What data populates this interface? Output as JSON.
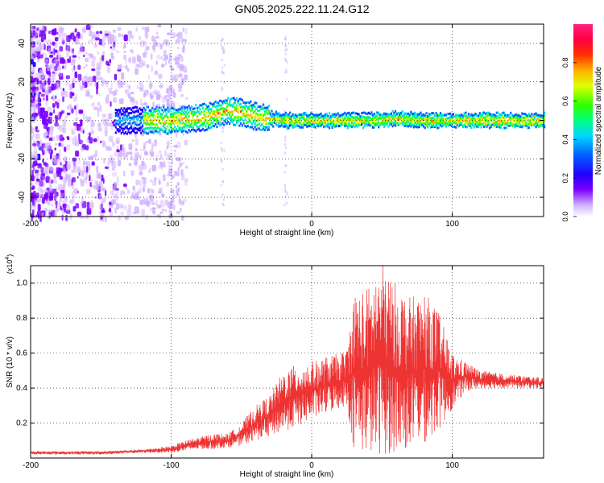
{
  "title": "GN05.2025.222.11.24.G12",
  "chart_data": [
    {
      "type": "heatmap",
      "xlabel": "Height of straight line (km)",
      "ylabel": "Frequency (Hz)",
      "xlim": [
        -200,
        165
      ],
      "ylim": [
        -50,
        50
      ],
      "xticks": [
        -200,
        -100,
        0,
        100
      ],
      "xtick_labels": [
        "-200",
        "-100",
        "0",
        "100"
      ],
      "yticks": [
        -40,
        -20,
        0,
        20,
        40
      ],
      "ytick_labels": [
        "-40",
        "-20",
        "0",
        "20",
        "40"
      ],
      "colorbar": {
        "label": "Normalized spectral amplitude",
        "range": [
          0,
          1
        ],
        "ticks": [
          0.0,
          0.2,
          0.4,
          0.6,
          0.8
        ],
        "tick_labels": [
          "0.0",
          "0.2",
          "0.4",
          "0.6",
          "0.8"
        ]
      },
      "ridge": {
        "x": [
          -140,
          -120,
          -100,
          -80,
          -70,
          -60,
          -50,
          -40,
          -30,
          -20,
          0,
          20,
          40,
          60,
          80,
          100,
          120,
          140,
          165
        ],
        "y": [
          0,
          0,
          0,
          1,
          3,
          5,
          4,
          2,
          1,
          0,
          0,
          0,
          0,
          1,
          0,
          0,
          0,
          0,
          0
        ]
      },
      "grid": true
    },
    {
      "type": "line",
      "xlabel": "Height of straight line (km)",
      "ylabel": "SNR (10 * v/v)",
      "y_scale_label": "(x10",
      "y_scale_exp": "4",
      "y_scale_close": ")",
      "xlim": [
        -200,
        165
      ],
      "ylim": [
        0,
        1.1
      ],
      "xticks": [
        -200,
        -100,
        0,
        100
      ],
      "xtick_labels": [
        "-200",
        "-100",
        "0",
        "100"
      ],
      "yticks": [
        0.2,
        0.4,
        0.6,
        0.8,
        1.0
      ],
      "ytick_labels": [
        "0.2",
        "0.4",
        "0.6",
        "0.8",
        "1.0"
      ],
      "color": "#ee3333",
      "envelope": {
        "x": [
          -200,
          -150,
          -120,
          -100,
          -90,
          -80,
          -70,
          -60,
          -50,
          -40,
          -30,
          -20,
          -10,
          0,
          10,
          20,
          25,
          30,
          40,
          50,
          60,
          70,
          80,
          90,
          100,
          110,
          120,
          140,
          165
        ],
        "low": [
          0.02,
          0.02,
          0.03,
          0.03,
          0.04,
          0.05,
          0.05,
          0.06,
          0.07,
          0.1,
          0.12,
          0.15,
          0.18,
          0.22,
          0.25,
          0.28,
          0.3,
          0.05,
          0.02,
          0.02,
          0.02,
          0.05,
          0.08,
          0.15,
          0.28,
          0.38,
          0.4,
          0.4,
          0.4
        ],
        "high": [
          0.04,
          0.04,
          0.05,
          0.07,
          0.1,
          0.12,
          0.14,
          0.14,
          0.2,
          0.3,
          0.36,
          0.5,
          0.54,
          0.55,
          0.58,
          0.6,
          0.62,
          0.95,
          0.98,
          1.12,
          1.0,
          0.92,
          0.95,
          0.85,
          0.6,
          0.55,
          0.5,
          0.48,
          0.46
        ]
      },
      "grid": true
    }
  ],
  "colors": {
    "accent": "#ee3333",
    "colormap": [
      "#ffffff",
      "#e8d8ff",
      "#b48cff",
      "#6a1ee6",
      "#2200ff",
      "#0080ff",
      "#00e6e6",
      "#00e600",
      "#e6e600",
      "#ff6600",
      "#e60000",
      "#ff3399"
    ]
  }
}
